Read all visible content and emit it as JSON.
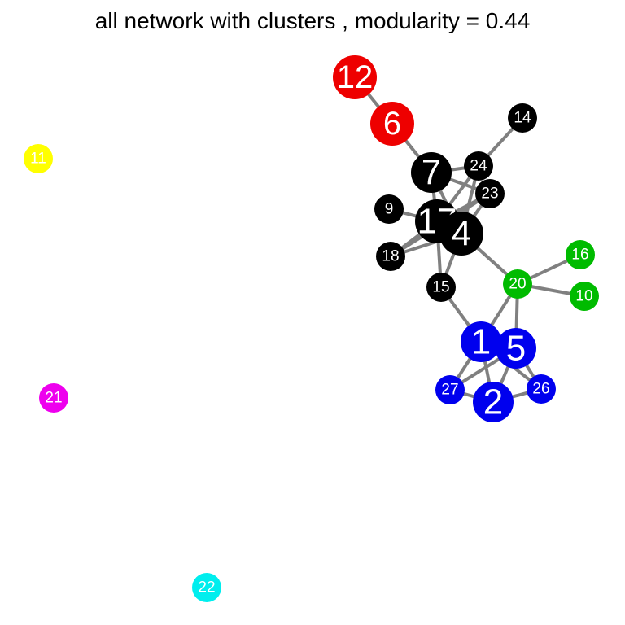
{
  "title": "all network with clusters , modularity = 0.44",
  "colors": {
    "edge": "#808080",
    "cluster_red": "#ee0000",
    "cluster_black": "#000000",
    "cluster_green": "#00bb00",
    "cluster_blue": "#0000ee",
    "cluster_yellow": "#ffff00",
    "cluster_magenta": "#ee00ee",
    "cluster_cyan": "#00eeee"
  },
  "nodes": [
    {
      "id": "12",
      "cluster": "red"
    },
    {
      "id": "6",
      "cluster": "red"
    },
    {
      "id": "14",
      "cluster": "black"
    },
    {
      "id": "7",
      "cluster": "black"
    },
    {
      "id": "24",
      "cluster": "black"
    },
    {
      "id": "23",
      "cluster": "black"
    },
    {
      "id": "9",
      "cluster": "black"
    },
    {
      "id": "17",
      "cluster": "black"
    },
    {
      "id": "4",
      "cluster": "black"
    },
    {
      "id": "18",
      "cluster": "black"
    },
    {
      "id": "15",
      "cluster": "black"
    },
    {
      "id": "16",
      "cluster": "green"
    },
    {
      "id": "20",
      "cluster": "green"
    },
    {
      "id": "10",
      "cluster": "green"
    },
    {
      "id": "1",
      "cluster": "blue"
    },
    {
      "id": "5",
      "cluster": "blue"
    },
    {
      "id": "27",
      "cluster": "blue"
    },
    {
      "id": "26",
      "cluster": "blue"
    },
    {
      "id": "2",
      "cluster": "blue"
    },
    {
      "id": "11",
      "cluster": "yellow"
    },
    {
      "id": "21",
      "cluster": "magenta"
    },
    {
      "id": "22",
      "cluster": "cyan"
    }
  ],
  "edges": [
    [
      "12",
      "6"
    ],
    [
      "6",
      "7"
    ],
    [
      "14",
      "24"
    ],
    [
      "7",
      "24"
    ],
    [
      "7",
      "23"
    ],
    [
      "7",
      "17"
    ],
    [
      "7",
      "4"
    ],
    [
      "24",
      "17"
    ],
    [
      "24",
      "4"
    ],
    [
      "23",
      "17"
    ],
    [
      "23",
      "4"
    ],
    [
      "9",
      "17"
    ],
    [
      "17",
      "4"
    ],
    [
      "18",
      "17"
    ],
    [
      "18",
      "4"
    ],
    [
      "18",
      "23"
    ],
    [
      "15",
      "17"
    ],
    [
      "15",
      "4"
    ],
    [
      "15",
      "1"
    ],
    [
      "4",
      "20"
    ],
    [
      "20",
      "16"
    ],
    [
      "20",
      "10"
    ],
    [
      "20",
      "1"
    ],
    [
      "20",
      "5"
    ],
    [
      "1",
      "5"
    ],
    [
      "1",
      "27"
    ],
    [
      "1",
      "2"
    ],
    [
      "1",
      "26"
    ],
    [
      "5",
      "2"
    ],
    [
      "5",
      "26"
    ],
    [
      "5",
      "27"
    ],
    [
      "27",
      "2"
    ],
    [
      "2",
      "26"
    ]
  ]
}
